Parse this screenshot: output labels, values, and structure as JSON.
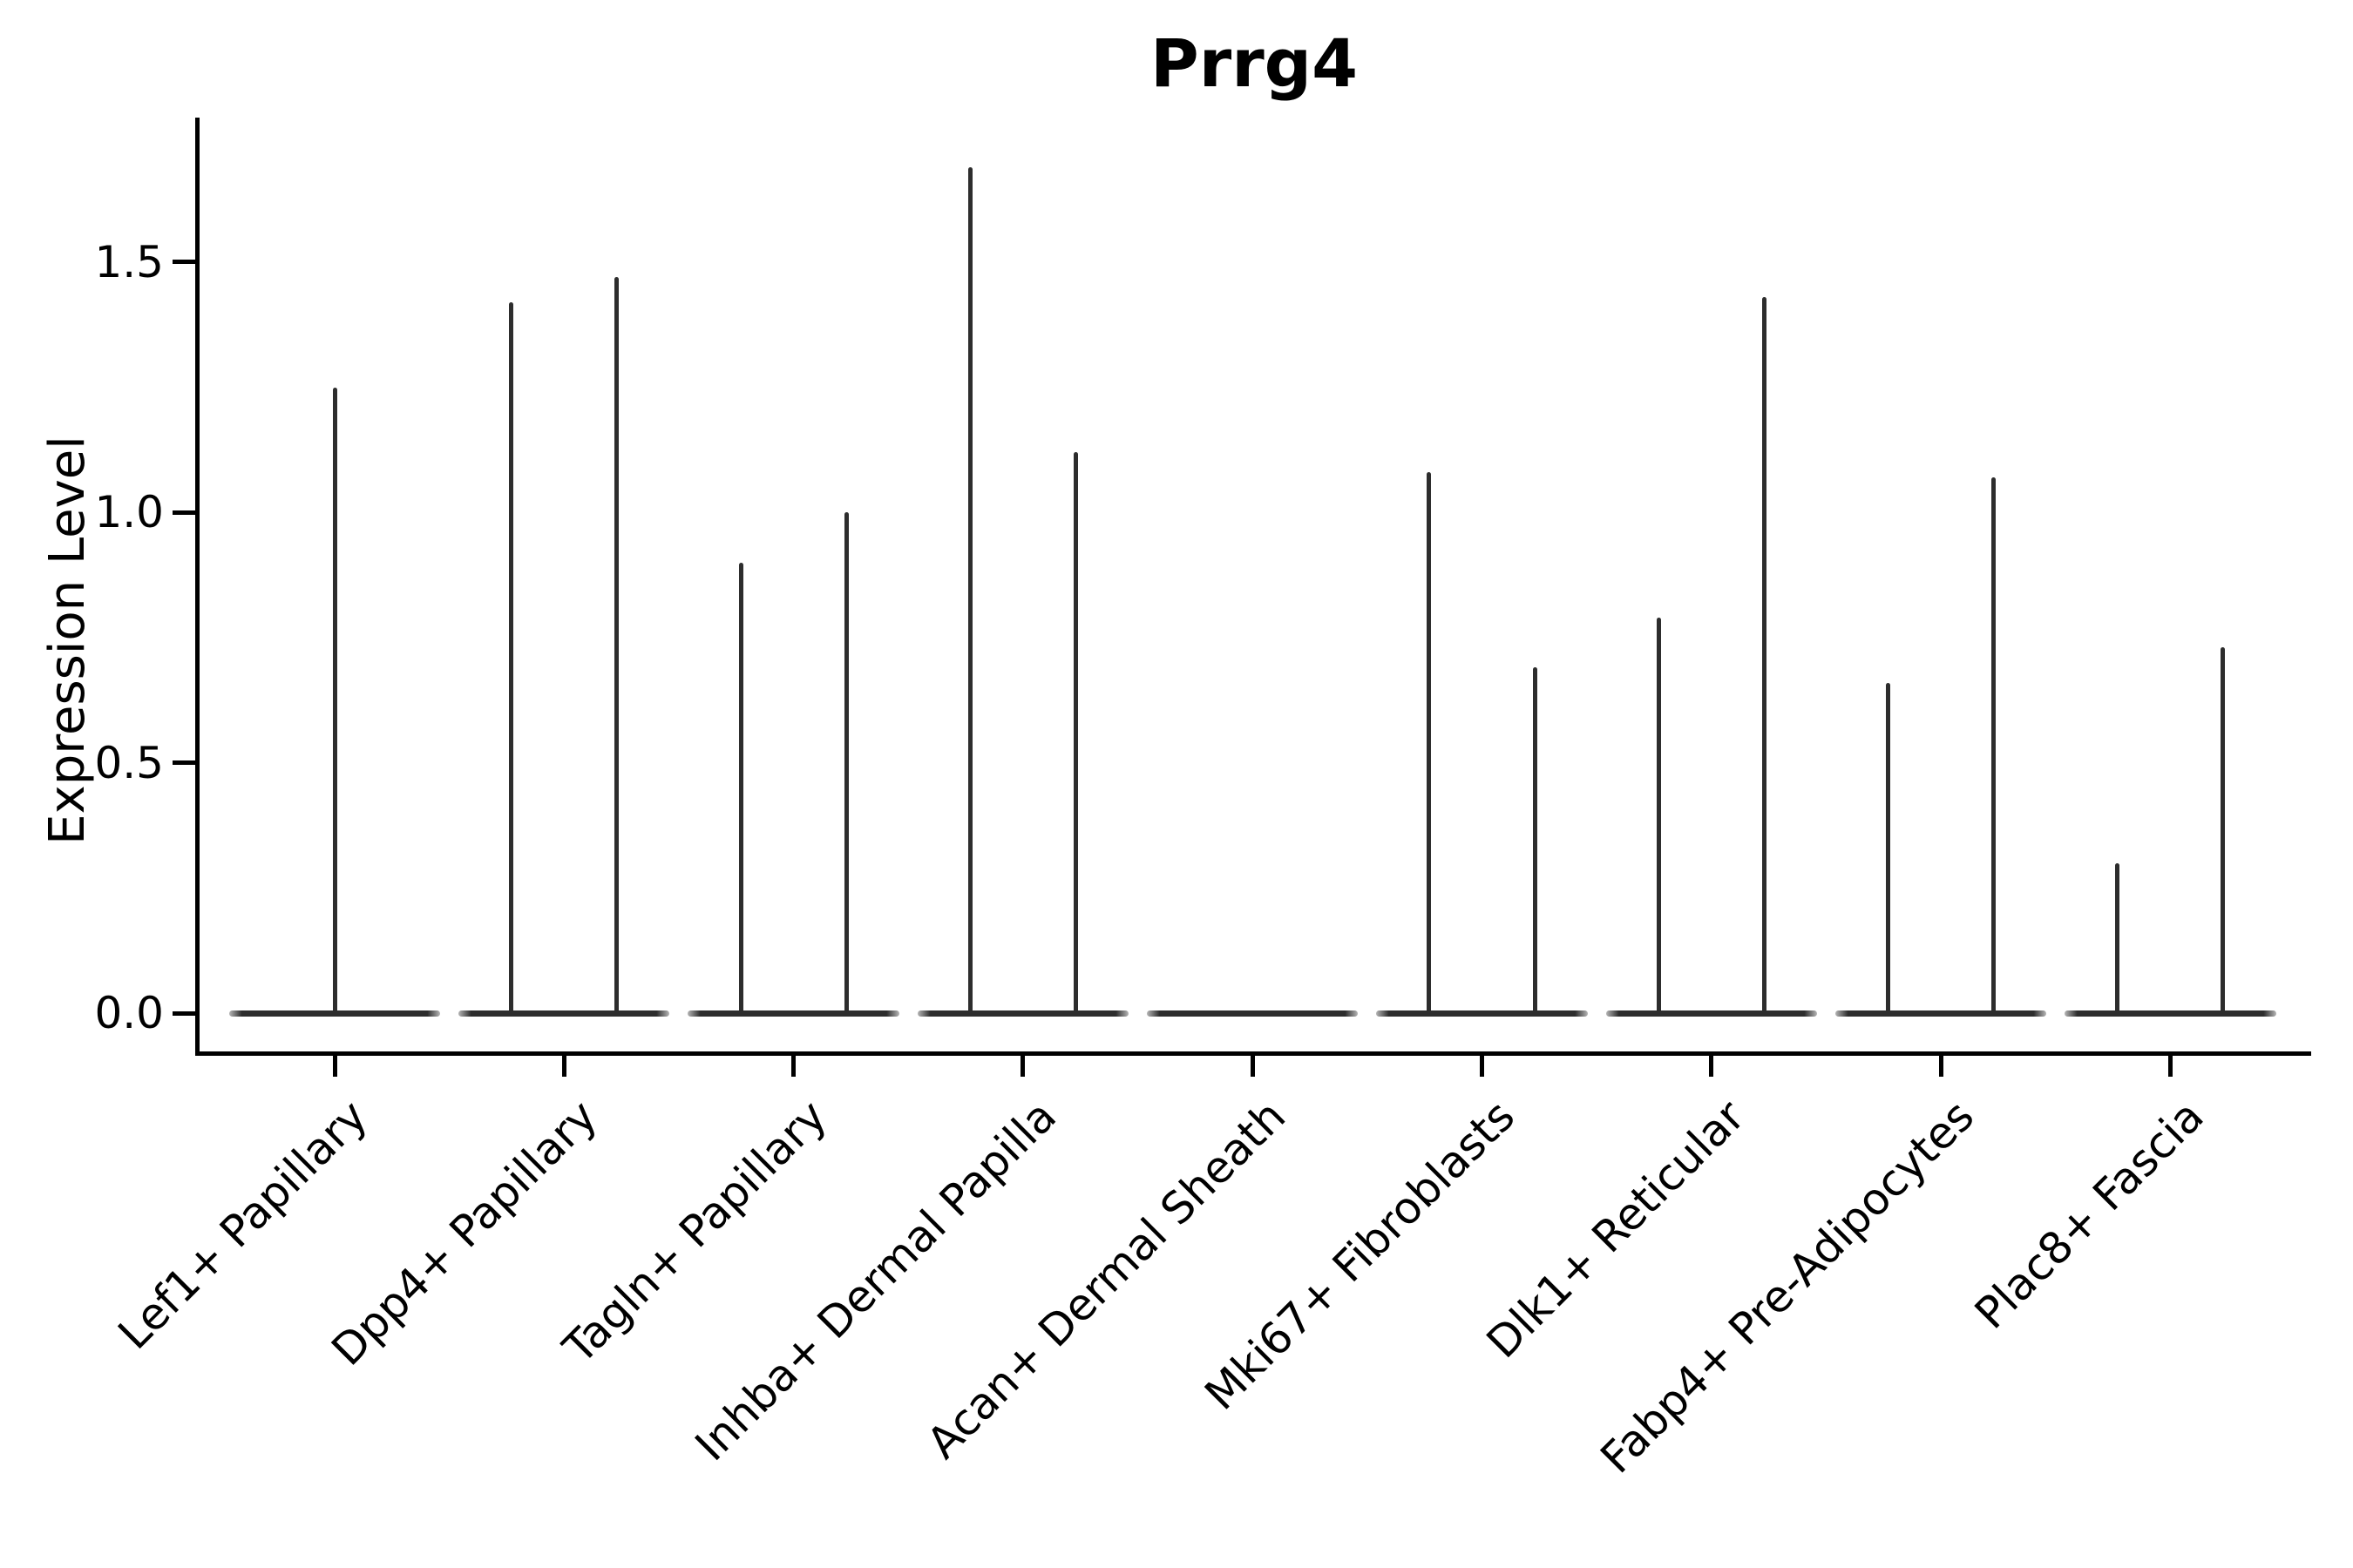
{
  "title": "Prrg4",
  "chart_data": {
    "type": "violin",
    "title": "Prrg4",
    "ylabel": "Expression Level",
    "xlabel": "",
    "ylim": [
      -0.08,
      1.79
    ],
    "ytick_labels": [
      "0.0",
      "0.5",
      "1.0",
      "1.5"
    ],
    "ytick_values": [
      0.0,
      0.5,
      1.0,
      1.5
    ],
    "grid": false,
    "legend": "none",
    "categories": [
      "Lef1+ Papillary",
      "Dpp4+ Papillary",
      "Tagln+ Papillary",
      "Inhba+ Dermal Papilla",
      "Acan+ Dermal Sheath",
      "Mki67+ Fibroblasts",
      "Dlk1+ Reticular",
      "Fabp4+ Pre-Adipocytes",
      "Plac8+ Fascia"
    ],
    "violins": [
      {
        "category": "Lef1+ Papillary",
        "base_at_zero": true,
        "spikes": [
          {
            "offset": 0,
            "max": 1.25
          }
        ]
      },
      {
        "category": "Dpp4+ Papillary",
        "base_at_zero": true,
        "spikes": [
          {
            "offset": -0.23,
            "max": 1.42
          },
          {
            "offset": 0.23,
            "max": 1.47
          }
        ]
      },
      {
        "category": "Tagln+ Papillary",
        "base_at_zero": true,
        "spikes": [
          {
            "offset": -0.23,
            "max": 0.9
          },
          {
            "offset": 0.23,
            "max": 1.0
          }
        ]
      },
      {
        "category": "Inhba+ Dermal Papilla",
        "base_at_zero": true,
        "spikes": [
          {
            "offset": -0.23,
            "max": 1.69
          },
          {
            "offset": 0.23,
            "max": 1.12
          }
        ]
      },
      {
        "category": "Acan+ Dermal Sheath",
        "base_at_zero": true,
        "spikes": []
      },
      {
        "category": "Mki67+ Fibroblasts",
        "base_at_zero": true,
        "spikes": [
          {
            "offset": -0.23,
            "max": 1.08
          },
          {
            "offset": 0.23,
            "max": 0.69
          }
        ]
      },
      {
        "category": "Dlk1+ Reticular",
        "base_at_zero": true,
        "spikes": [
          {
            "offset": -0.23,
            "max": 0.79
          },
          {
            "offset": 0.23,
            "max": 1.43
          }
        ]
      },
      {
        "category": "Fabp4+ Pre-Adipocytes",
        "base_at_zero": true,
        "spikes": [
          {
            "offset": -0.23,
            "max": 0.66
          },
          {
            "offset": 0.23,
            "max": 1.07
          }
        ]
      },
      {
        "category": "Plac8+ Fascia",
        "base_at_zero": true,
        "spikes": [
          {
            "offset": -0.23,
            "max": 0.3
          },
          {
            "offset": 0.23,
            "max": 0.73
          }
        ]
      }
    ],
    "base_halfwidth": 0.46,
    "colors": {
      "violin": "#2d2d2d",
      "axis": "#000000",
      "text": "#000000",
      "background": "#ffffff"
    }
  }
}
